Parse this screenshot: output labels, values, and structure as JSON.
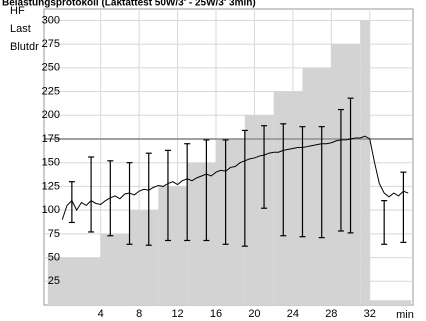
{
  "chart_data": {
    "type": "exercise-protocol",
    "title": "Belastungsprotokoll (Laktattest 50W/3' - 25W/3' 3min)",
    "y_axis_labels": [
      "HF",
      "Last",
      "Blutdr"
    ],
    "x_label": "min",
    "xlim": [
      -1.9,
      36.5
    ],
    "ylim": [
      0,
      312
    ],
    "xticks": [
      4,
      8,
      12,
      16,
      20,
      24,
      28,
      32
    ],
    "yticks": [
      25,
      50,
      75,
      100,
      125,
      150,
      175,
      200,
      225,
      250,
      275,
      300
    ],
    "grid": true,
    "grid_color": "#d8d8d8",
    "load": {
      "color": "#d3d3d3",
      "edges": [
        -1.5,
        4,
        7,
        10,
        13,
        16,
        19,
        22,
        25,
        28,
        31,
        32,
        36.3
      ],
      "values": [
        50,
        75,
        100,
        125,
        150,
        175,
        200,
        225,
        250,
        275,
        300,
        5
      ]
    },
    "reference_line": {
      "value": 175,
      "color": "#a0a0a0"
    },
    "heart_rate": {
      "color": "#000000",
      "x": [
        0,
        0.5,
        1,
        1.5,
        2,
        2.5,
        3,
        3.5,
        4,
        4.5,
        5,
        5.5,
        6,
        6.5,
        7,
        7.5,
        8,
        8.5,
        9,
        9.5,
        10,
        10.5,
        11,
        11.5,
        12,
        12.5,
        13,
        13.5,
        14,
        14.5,
        15,
        15.5,
        16,
        16.5,
        17,
        17.5,
        18,
        18.5,
        19,
        19.5,
        20,
        20.5,
        21,
        21.5,
        22,
        22.5,
        23,
        23.5,
        24,
        24.5,
        25,
        25.5,
        26,
        26.5,
        27,
        27.5,
        28,
        28.5,
        29,
        29.5,
        30,
        30.5,
        31,
        31.5,
        32,
        32.5,
        33,
        33.5,
        34,
        34.5,
        35,
        35.5,
        36
      ],
      "values": [
        90,
        105,
        110,
        100,
        108,
        105,
        110,
        107,
        106,
        110,
        113,
        115,
        112,
        117,
        118,
        116,
        120,
        122,
        121,
        124,
        126,
        125,
        128,
        130,
        127,
        131,
        133,
        131,
        134,
        136,
        138,
        136,
        140,
        142,
        141,
        145,
        146,
        150,
        152,
        154,
        155,
        157,
        158,
        160,
        161,
        161,
        163,
        164,
        165,
        166,
        166,
        167,
        168,
        169,
        170,
        170,
        171,
        173,
        174,
        174,
        175,
        176,
        176,
        178,
        175,
        150,
        128,
        118,
        114,
        118,
        115,
        120,
        118
      ]
    },
    "blood_pressure": {
      "color": "#000000",
      "x": [
        1,
        3,
        5,
        7,
        9,
        11,
        13,
        15,
        17,
        19,
        21,
        23,
        25,
        27,
        29,
        30,
        33.5,
        35.5
      ],
      "systolic": [
        130,
        156,
        152,
        150,
        160,
        163,
        170,
        174,
        174,
        184,
        189,
        191,
        188,
        188,
        206,
        218,
        110,
        140
      ],
      "diastolic": [
        87,
        77,
        73,
        64,
        63,
        68,
        68,
        68,
        64,
        62,
        102,
        73,
        72,
        71,
        78,
        76,
        64,
        66
      ]
    }
  }
}
